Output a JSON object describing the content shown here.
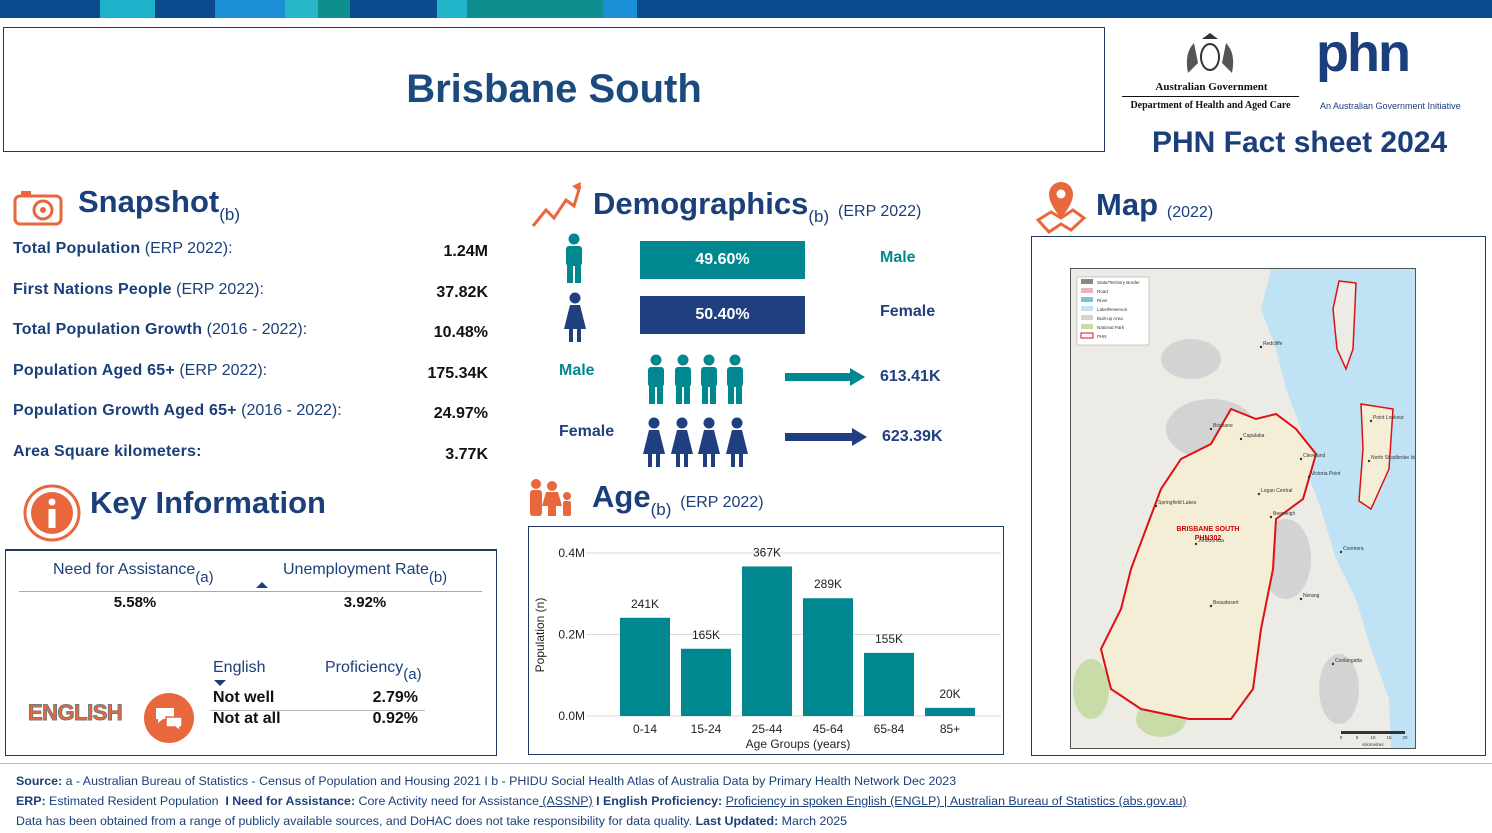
{
  "header": {
    "title": "Brisbane South",
    "gov_line1": "Australian Government",
    "gov_line2": "Department of Health and Aged Care",
    "phn_logo": "phn",
    "phn_tagline": "An Australian Government Initiative",
    "factsheet": "PHN Fact sheet 2024"
  },
  "snapshot": {
    "title": "Snapshot",
    "title_note": "(b)",
    "rows": [
      {
        "label": "Total Population",
        "note": " (ERP 2022):",
        "value": "1.24M"
      },
      {
        "label": "First Nations People",
        "note": " (ERP 2022):",
        "value": "37.82K"
      },
      {
        "label": "Total Population Growth",
        "note": " (2016 - 2022):",
        "value": "10.48%"
      },
      {
        "label": "Population Aged 65+",
        "note": " (ERP 2022):",
        "value": "175.34K"
      },
      {
        "label": "Population Growth Aged 65+",
        "note": " (2016 - 2022):",
        "value": "24.97%"
      },
      {
        "label": "Area Square kilometers:",
        "note": "",
        "value": "3.77K"
      }
    ]
  },
  "demographics": {
    "title": "Demographics",
    "title_note": "(b)",
    "subtitle": "(ERP 2022)",
    "male_pct": "49.60%",
    "female_pct": "50.40%",
    "male_label": "Male",
    "female_label": "Female",
    "male_count_label": "Male",
    "female_count_label": "Female",
    "male_count": "613.41K",
    "female_count": "623.39K"
  },
  "key_info": {
    "title": "Key Information",
    "need_label": "Need for Assistance",
    "need_note": "(a)",
    "unemp_label": "Unemployment Rate",
    "unemp_note": "(b)",
    "need_value": "5.58%",
    "unemp_value": "3.92%",
    "badge": "ENGLISH",
    "english_header": "English",
    "proficiency_header": "Proficiency",
    "proficiency_note": "(a)",
    "rows": [
      [
        "Not well",
        "2.79%"
      ],
      [
        "Not at all",
        "0.92%"
      ]
    ]
  },
  "age": {
    "title": "Age",
    "title_note": "(b)",
    "subtitle": "(ERP 2022)"
  },
  "chart_data": {
    "type": "bar",
    "categories": [
      "0-14",
      "15-24",
      "25-44",
      "45-64",
      "65-84",
      "85+"
    ],
    "values": [
      241000,
      165000,
      367000,
      289000,
      155000,
      20000
    ],
    "value_labels": [
      "241K",
      "165K",
      "367K",
      "289K",
      "155K",
      "20K"
    ],
    "color": "#00878f",
    "ylim": [
      0,
      400000
    ],
    "yticks": [
      {
        "value": 0,
        "label": "0.0M"
      },
      {
        "value": 200000,
        "label": "0.2M"
      },
      {
        "value": 400000,
        "label": "0.4M"
      }
    ],
    "grid": true,
    "x_label": "Age Groups (years)",
    "y_label": "Population (n)"
  },
  "map": {
    "title": "Map",
    "subtitle": "(2022)",
    "legend": [
      "State/Territory Border",
      "Road",
      "River",
      "Lake/Reservoir",
      "Built-up Area",
      "National Park",
      "PHN"
    ],
    "region_label": "BRISBANE SOUTH",
    "region_code": "PHN302",
    "places": [
      "Brisbane",
      "Capalaba",
      "Cleveland",
      "Logan Central",
      "Beenleigh",
      "Springfield Lakes",
      "Victoria Point",
      "Beaudesert",
      "Jimboomba",
      "North Stradbroke Island",
      "Point Lookout",
      "Redcliffe",
      "Coomera",
      "Nerang",
      "Coolangatta"
    ],
    "scale_ticks": [
      "0",
      "5",
      "10",
      "15",
      "20"
    ],
    "scale_label": "Kilometres"
  },
  "footer": {
    "lines": [
      [
        {
          "text": "Source:",
          "bold": true
        },
        {
          "text": " a - Australian Bureau of Statistics - Census of Population and Housing 2021 I b - PHIDU Social Health Atlas of Australia Data by Primary Health Network Dec 2023"
        }
      ],
      [
        {
          "text": "ERP:",
          "bold": true
        },
        {
          "text": " Estimated Resident Population "
        },
        {
          "text": " I Need for Assistance:",
          "bold": true
        },
        {
          "text": " Core Activity need for Assistance"
        },
        {
          "text": " (ASSNP)",
          "link": true
        },
        {
          "text": " I English Proficiency:",
          "bold": true
        },
        {
          "text": " "
        },
        {
          "text": "Proficiency in spoken English (ENGLP) | Australian Bureau of Statistics (abs.gov.au)",
          "link": true
        }
      ],
      [
        {
          "text": "Data has been obtained from a range of publicly available sources, and DoHAC does not take responsibility for data quality. "
        },
        {
          "text": "Last Updated:",
          "bold": true
        },
        {
          "text": " March 2025"
        }
      ]
    ]
  }
}
